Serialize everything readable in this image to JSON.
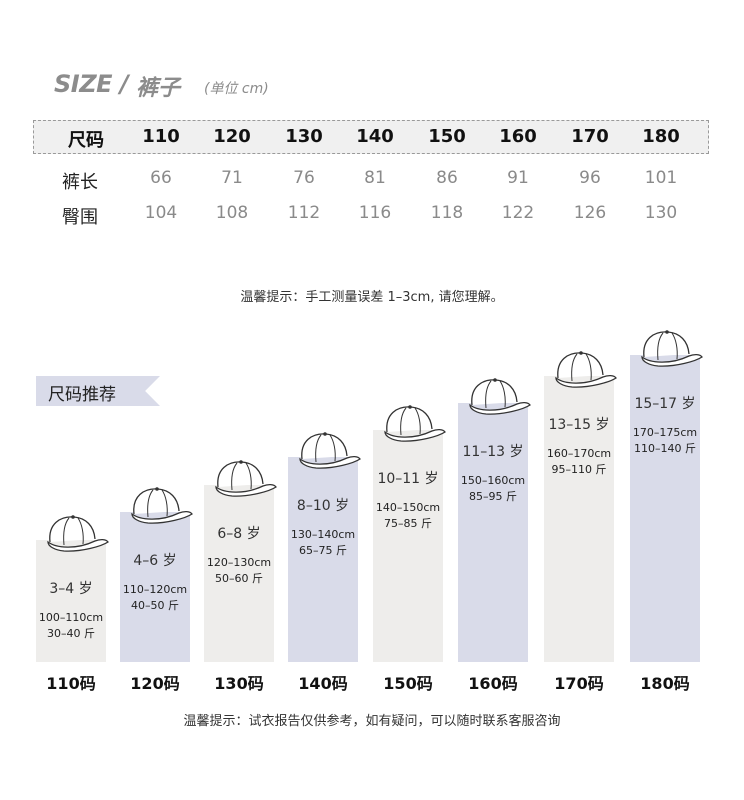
{
  "header": {
    "size": "SIZE",
    "slash": "/",
    "category": "裤子",
    "unit": "(单位 cm)"
  },
  "table": {
    "header_label": "尺码",
    "sizes": [
      "110",
      "120",
      "130",
      "140",
      "150",
      "160",
      "170",
      "180"
    ],
    "rows": [
      {
        "label": "裤长",
        "values": [
          "66",
          "71",
          "76",
          "81",
          "86",
          "91",
          "96",
          "101"
        ]
      },
      {
        "label": "臀围",
        "values": [
          "104",
          "108",
          "112",
          "116",
          "118",
          "122",
          "126",
          "130"
        ]
      }
    ]
  },
  "tip_measure": "温馨提示：手工测量误差 1–3cm, 请您理解。",
  "recommend": {
    "title": "尺码推荐",
    "items": [
      {
        "age": "3–4 岁",
        "height": "100–110cm",
        "weight": "30–40 斤",
        "size": "110码",
        "color": "#eeedeb"
      },
      {
        "age": "4–6 岁",
        "height": "110–120cm",
        "weight": "40–50 斤",
        "size": "120码",
        "color": "#d9dbe9"
      },
      {
        "age": "6–8 岁",
        "height": "120–130cm",
        "weight": "50–60 斤",
        "size": "130码",
        "color": "#eeedeb"
      },
      {
        "age": "8–10 岁",
        "height": "130–140cm",
        "weight": "65–75 斤",
        "size": "140码",
        "color": "#d9dbe9"
      },
      {
        "age": "10–11 岁",
        "height": "140–150cm",
        "weight": "75–85 斤",
        "size": "150码",
        "color": "#eeedeb"
      },
      {
        "age": "11–13 岁",
        "height": "150–160cm",
        "weight": "85–95 斤",
        "size": "160码",
        "color": "#d9dbe9"
      },
      {
        "age": "13–15 岁",
        "height": "160–170cm",
        "weight": "95–110 斤",
        "size": "170码",
        "color": "#eeedeb"
      },
      {
        "age": "15–17 岁",
        "height": "170–175cm",
        "weight": "110–140 斤",
        "size": "180码",
        "color": "#d9dbe9"
      }
    ],
    "icon": "baseball-cap-icon"
  },
  "tip_bottom": "温馨提示：试衣报告仅供参考，如有疑问，可以随时联系客服咨询"
}
